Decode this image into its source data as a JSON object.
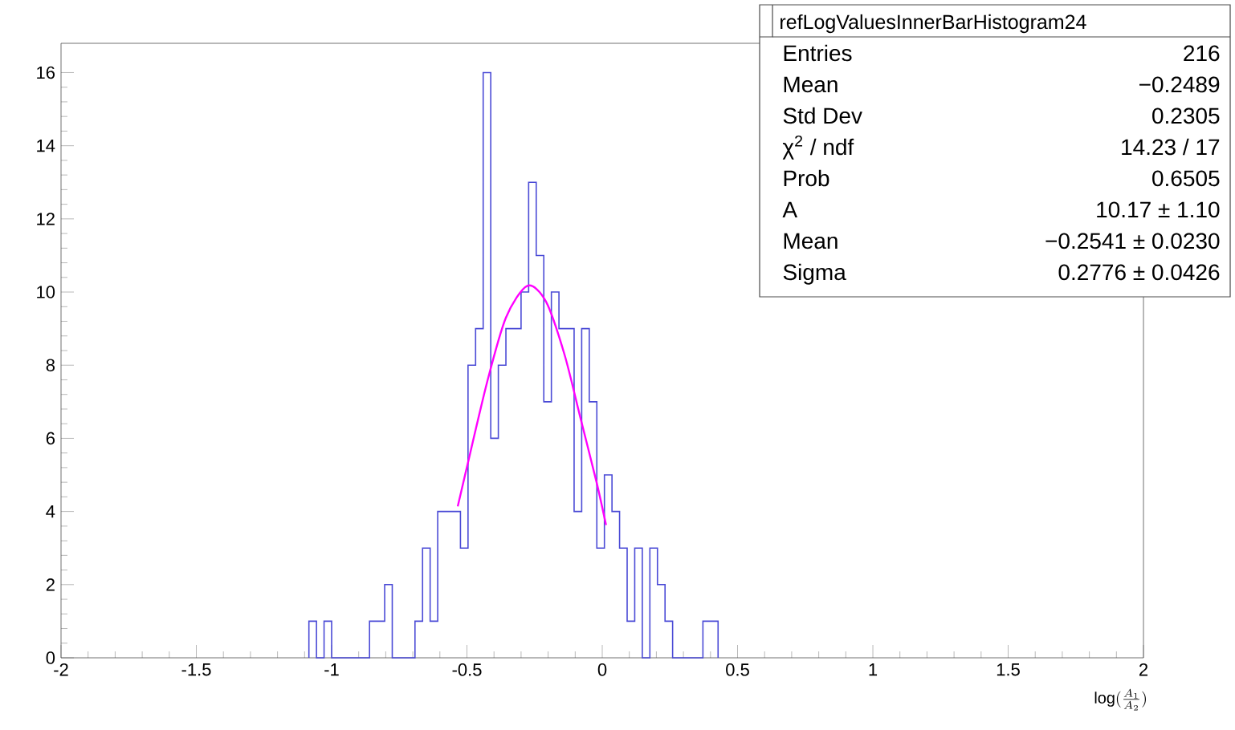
{
  "chart_data": {
    "type": "histogram",
    "color": "#4b4bd6",
    "bins": [
      -1.084,
      -1.056,
      -1.028,
      -1.0,
      -0.972,
      -0.944,
      -0.916,
      -0.888,
      -0.86,
      -0.832,
      -0.804,
      -0.776,
      -0.748,
      -0.72,
      -0.692,
      -0.664,
      -0.636,
      -0.608,
      -0.58,
      -0.552,
      -0.524,
      -0.496,
      -0.468,
      -0.44,
      -0.412,
      -0.384,
      -0.356,
      -0.328,
      -0.3,
      -0.272,
      -0.244,
      -0.216,
      -0.188,
      -0.16,
      -0.132,
      -0.104,
      -0.076,
      -0.048,
      -0.02,
      0.008,
      0.036,
      0.064,
      0.092,
      0.12,
      0.148,
      0.176,
      0.204,
      0.232,
      0.26,
      0.288,
      0.316,
      0.344,
      0.372,
      0.4,
      0.428
    ],
    "values": [
      1,
      0,
      1,
      0,
      0,
      0,
      0,
      0,
      1,
      1,
      2,
      0,
      0,
      0,
      1,
      3,
      1,
      4,
      4,
      4,
      3,
      8,
      9,
      16,
      6,
      8,
      9,
      9,
      10,
      13,
      11,
      7,
      10,
      9,
      9,
      4,
      9,
      7,
      3,
      5,
      4,
      3,
      1,
      3,
      0,
      3,
      2,
      1,
      0,
      0,
      0,
      0,
      1,
      1
    ],
    "series": [
      {
        "type": "line",
        "color": "#ff00ff",
        "x": [
          -0.534,
          -0.504,
          -0.425,
          -0.356,
          -0.277,
          -0.208,
          -0.139,
          -0.08,
          -0.021,
          0.014
        ],
        "values": [
          4.14,
          5.09,
          7.55,
          9.3,
          10.17,
          9.74,
          8.28,
          6.54,
          4.8,
          3.63
        ]
      }
    ],
    "xlim": [
      -2,
      2
    ],
    "ylim": [
      0,
      16.8
    ],
    "xticks": [
      -2,
      -1.5,
      -1,
      -0.5,
      0,
      0.5,
      1,
      1.5,
      2
    ],
    "yticks": [
      0,
      2,
      4,
      6,
      8,
      10,
      12,
      14,
      16
    ],
    "xlabel": "\\log(\\frac{A_{1}}{A_{2}})",
    "annotations": [
      "refLogValuesInnerBarHistogram24",
      "Entries",
      "216",
      "Mean",
      "−0.2489",
      "Std Dev",
      "0.2305",
      "χ$^{2}$ / ndf",
      "14.23 / 17",
      "Prob",
      "0.6505",
      "A",
      "10.17 ± 1.10",
      "Mean",
      "−0.2541 ± 0.0230",
      "Sigma",
      "0.2776 ± 0.0426"
    ]
  }
}
